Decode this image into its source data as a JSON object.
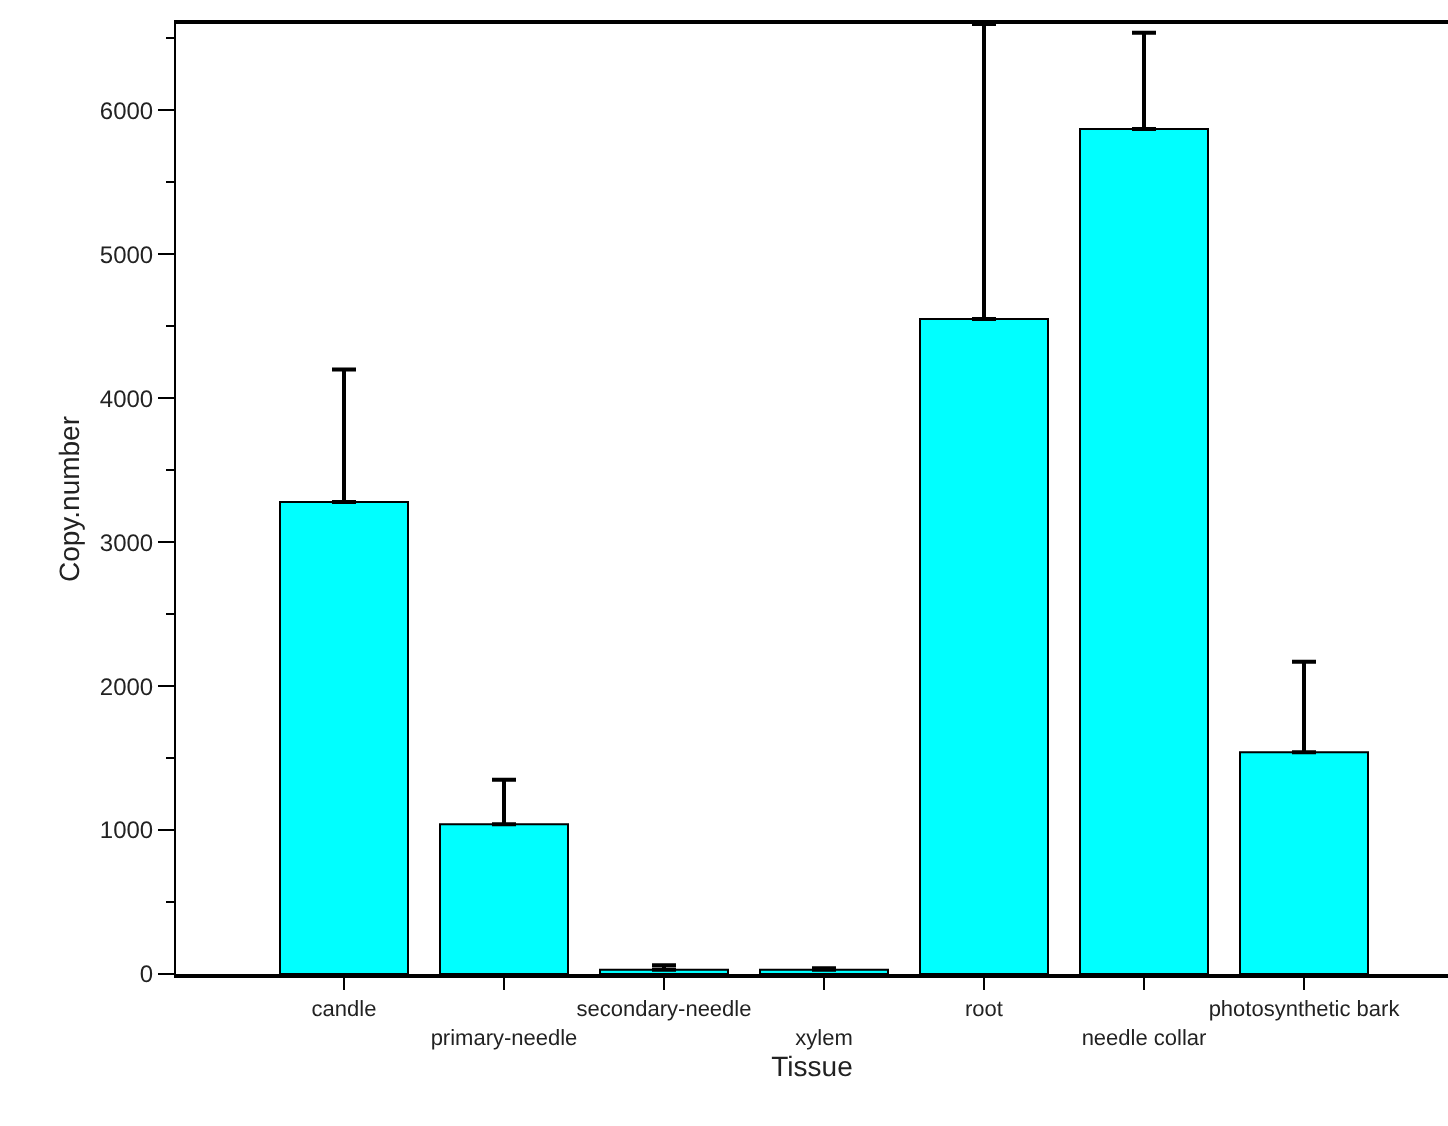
{
  "chart_data": {
    "type": "bar",
    "xlabel": "Tissue",
    "ylabel": "Copy.number",
    "categories": [
      "candle",
      "primary-needle",
      "secondary-needle",
      "xylem",
      "root",
      "needle collar",
      "photosynthetic bark"
    ],
    "values": [
      3280,
      1040,
      30,
      30,
      4550,
      5870,
      1540
    ],
    "errors": [
      [
        3280,
        4200
      ],
      [
        1040,
        1350
      ],
      [
        30,
        60
      ],
      [
        30,
        40
      ],
      [
        4550,
        6600
      ],
      [
        5870,
        6540
      ],
      [
        1540,
        2170
      ]
    ],
    "color": "#00ffff",
    "ylim": [
      0,
      6600
    ],
    "yticks": [
      0,
      1000,
      2000,
      3000,
      4000,
      5000,
      6000
    ]
  }
}
